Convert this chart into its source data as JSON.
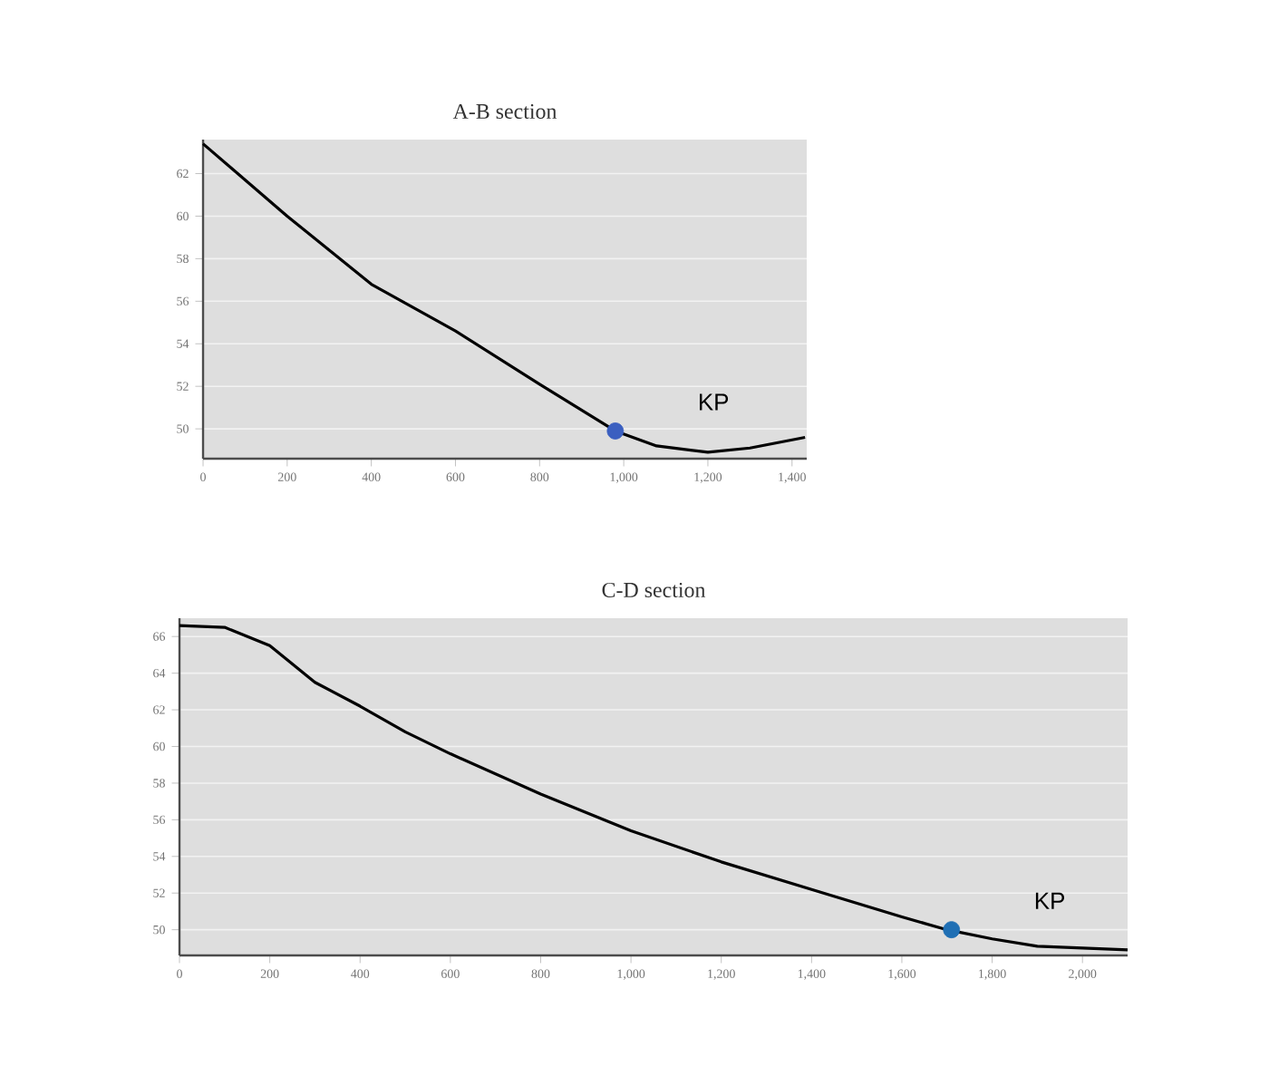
{
  "chart_data": [
    {
      "type": "line",
      "title": "A-B section",
      "xlim": [
        0,
        1435
      ],
      "ylim": [
        48.6,
        63.6
      ],
      "xticks": [
        0,
        200,
        400,
        600,
        800,
        {
          "value": 1000,
          "label": "1,000"
        },
        {
          "value": 1200,
          "label": "1,200"
        },
        {
          "value": 1400,
          "label": "1,400"
        }
      ],
      "yticks": [
        50,
        52,
        54,
        56,
        58,
        60,
        62
      ],
      "grid": "y",
      "series": [
        {
          "color": "#000000",
          "marker": "none",
          "x": [
            0,
            200,
            400,
            600,
            800,
            980,
            1078,
            1200,
            1300,
            1431
          ],
          "values": [
            63.4,
            60.0,
            56.8,
            54.6,
            52.1,
            49.9,
            49.2,
            48.9,
            49.1,
            49.6
          ]
        },
        {
          "type": "scatter",
          "color": "#3b5fc0",
          "marker": "circle",
          "x": [
            980
          ],
          "values": [
            49.9
          ]
        }
      ],
      "annotations": [
        "KP"
      ]
    },
    {
      "type": "line",
      "title": "C-D section",
      "xlim": [
        0,
        2100
      ],
      "ylim": [
        48.6,
        67.0
      ],
      "xticks": [
        0,
        200,
        400,
        600,
        800,
        {
          "value": 1000,
          "label": "1,000"
        },
        {
          "value": 1200,
          "label": "1,200"
        },
        {
          "value": 1400,
          "label": "1,400"
        },
        {
          "value": 1600,
          "label": "1,600"
        },
        {
          "value": 1800,
          "label": "1,800"
        },
        {
          "value": 2000,
          "label": "2,000"
        }
      ],
      "yticks": [
        50,
        52,
        54,
        56,
        58,
        60,
        62,
        64,
        66
      ],
      "grid": "y",
      "series": [
        {
          "color": "#000000",
          "marker": "none",
          "x": [
            0,
            100,
            150,
            200,
            300,
            400,
            500,
            600,
            800,
            1000,
            1200,
            1400,
            1600,
            1700,
            1800,
            1900,
            2000,
            2100
          ],
          "values": [
            66.6,
            66.5,
            66.0,
            65.5,
            63.5,
            62.2,
            60.8,
            59.6,
            57.4,
            55.4,
            53.7,
            52.2,
            50.7,
            50.0,
            49.5,
            49.1,
            49.0,
            48.9
          ]
        },
        {
          "type": "scatter",
          "color": "#1f6fb4",
          "marker": "circle",
          "x": [
            1710
          ],
          "values": [
            50.0
          ]
        }
      ],
      "annotations": [
        "KP"
      ]
    }
  ]
}
